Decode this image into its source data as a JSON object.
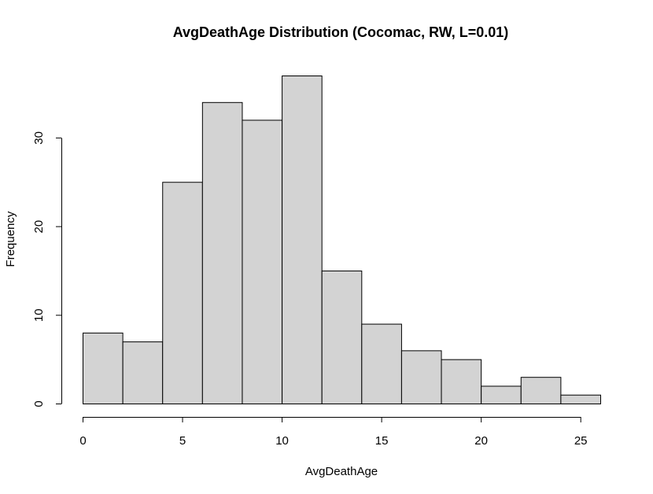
{
  "chart_data": {
    "type": "bar",
    "title": "AvgDeathAge Distribution (Cocomac, RW, L=0.01)",
    "xlabel": "AvgDeathAge",
    "ylabel": "Frequency",
    "bins": [
      {
        "start": 0,
        "end": 2,
        "count": 8
      },
      {
        "start": 2,
        "end": 4,
        "count": 7
      },
      {
        "start": 4,
        "end": 6,
        "count": 25
      },
      {
        "start": 6,
        "end": 8,
        "count": 34
      },
      {
        "start": 8,
        "end": 10,
        "count": 32
      },
      {
        "start": 10,
        "end": 12,
        "count": 37
      },
      {
        "start": 12,
        "end": 14,
        "count": 15
      },
      {
        "start": 14,
        "end": 16,
        "count": 9
      },
      {
        "start": 16,
        "end": 18,
        "count": 6
      },
      {
        "start": 18,
        "end": 20,
        "count": 5
      },
      {
        "start": 20,
        "end": 22,
        "count": 2
      },
      {
        "start": 22,
        "end": 24,
        "count": 3
      },
      {
        "start": 24,
        "end": 26,
        "count": 1
      }
    ],
    "xlim": [
      0,
      26
    ],
    "ylim": [
      0,
      37
    ],
    "x_ticks": [
      0,
      5,
      10,
      15,
      20,
      25
    ],
    "y_ticks": [
      0,
      10,
      20,
      30
    ],
    "grid": false,
    "legend": "none",
    "colors": {
      "bar_fill": "#d3d3d3",
      "bar_stroke": "#000000"
    }
  }
}
